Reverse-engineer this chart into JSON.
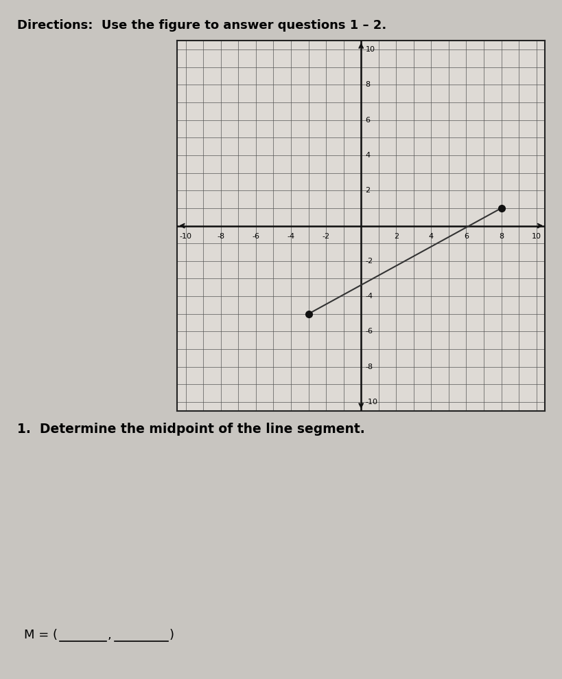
{
  "title": "Directions:  Use the figure to answer questions 1 – 2.",
  "title_fontsize": 13,
  "title_fontweight": "bold",
  "page_bg": "#c8c5c0",
  "graph_bg": "#dedad5",
  "xlim": [
    -10.5,
    10.5
  ],
  "ylim": [
    -10.5,
    10.5
  ],
  "grid_color": "#555555",
  "axis_color": "#111111",
  "point1": [
    -3,
    -5
  ],
  "point2": [
    8,
    1
  ],
  "line_color": "#333333",
  "dot_color": "#111111",
  "dot_size": 7,
  "question1_text": "1.  Determine the midpoint of the line segment.",
  "question1_fontsize": 13.5,
  "question1_fontweight": "bold",
  "tick_label_fontsize": 8,
  "even_ticks": [
    -10,
    -8,
    -6,
    -4,
    -2,
    2,
    4,
    6,
    8,
    10
  ]
}
